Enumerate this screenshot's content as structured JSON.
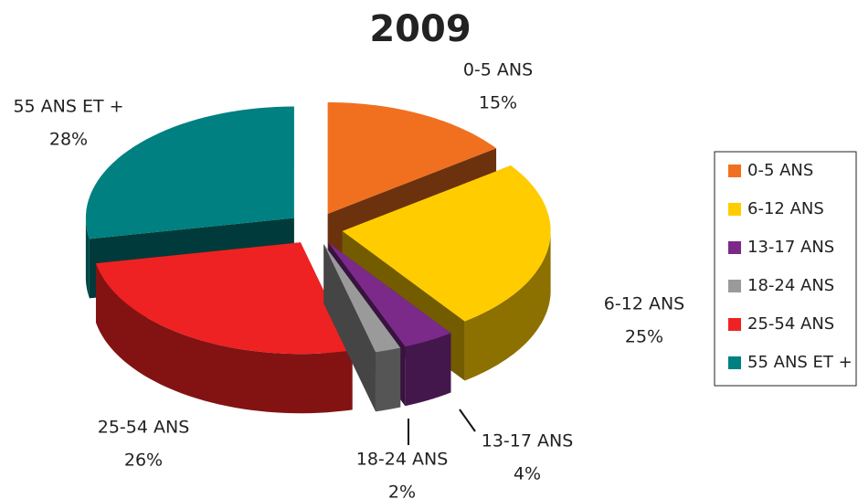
{
  "chart_data": {
    "type": "pie3d",
    "title": "2009",
    "categories": [
      "0-5 ANS",
      "6-12 ANS",
      "13-17 ANS",
      "18-24 ANS",
      "25-54 ANS",
      "55 ANS ET +"
    ],
    "values": [
      15,
      25,
      4,
      2,
      26,
      28
    ],
    "value_labels": [
      "15%",
      "25%",
      "4%",
      "2%",
      "26%",
      "28%"
    ],
    "colors": [
      "#f07020",
      "#ffcc00",
      "#7b2a8a",
      "#9a9a9a",
      "#ee2222",
      "#008080"
    ],
    "legend": "right"
  }
}
